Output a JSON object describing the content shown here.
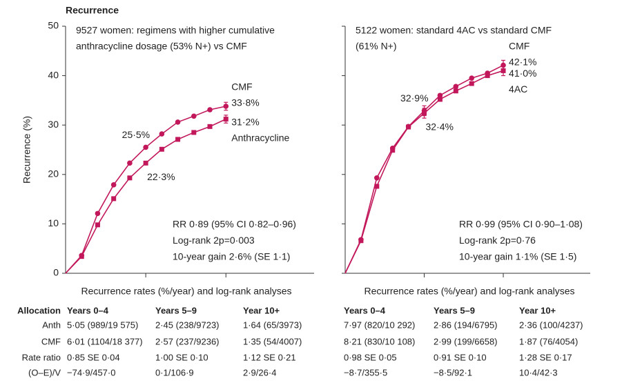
{
  "title": "Recurrence",
  "chart_data": [
    {
      "type": "line",
      "subtitle": [
        "9527 women: regimens with higher cumulative",
        "anthracycline dosage (53% N+) vs CMF"
      ],
      "ylabel": "Recurrence (%)",
      "xlabel": "Recurrence rates (%/year) and log-rank analyses",
      "stats": [
        "RR 0·89 (95% CI 0·82–0·96)",
        "Log-rank 2p=0·003",
        "10-year gain 2·6% (SE 1·1)"
      ],
      "x": [
        0,
        1,
        2,
        3,
        4,
        5,
        6,
        7,
        8,
        9,
        10
      ],
      "xlim": [
        0,
        15.5
      ],
      "xticks": [
        5,
        10
      ],
      "ylim": [
        0,
        50
      ],
      "yticks": [
        0,
        10,
        20,
        30,
        40,
        50
      ],
      "ytick_labels": true,
      "series": [
        {
          "name": "CMF",
          "color": "#c2185b",
          "marker": "circle",
          "values": [
            0,
            3.6,
            12.1,
            17.9,
            22.3,
            25.5,
            28.2,
            30.6,
            31.8,
            33.1,
            33.8
          ],
          "errors": [
            null,
            null,
            null,
            null,
            null,
            null,
            null,
            null,
            null,
            null,
            0.8
          ],
          "value_labels": [
            null,
            null,
            null,
            null,
            null,
            "25·5%",
            null,
            null,
            null,
            null,
            "33·8%"
          ]
        },
        {
          "name": "Anthracycline",
          "color": "#c2185b",
          "marker": "square",
          "values": [
            0,
            3.4,
            9.8,
            15.1,
            19.3,
            22.3,
            25.1,
            27.1,
            28.5,
            29.7,
            31.2
          ],
          "errors": [
            null,
            null,
            null,
            null,
            null,
            null,
            null,
            null,
            null,
            null,
            0.8
          ],
          "value_labels": [
            null,
            null,
            null,
            null,
            null,
            "22·3%",
            null,
            null,
            null,
            null,
            "31·2%"
          ]
        }
      ]
    },
    {
      "type": "line",
      "subtitle": [
        "5122 women: standard 4AC vs standard CMF",
        "(61% N+)"
      ],
      "xlabel": "Recurrence rates (%/year) and log-rank analyses",
      "stats": [
        "RR 0·99 (95% CI 0·90–1·08)",
        "Log-rank 2p=0·76",
        "10-year gain 1·1% (SE 1·5)"
      ],
      "x": [
        0,
        1,
        2,
        3,
        4,
        5,
        6,
        7,
        8,
        9,
        10
      ],
      "xlim": [
        0,
        15.5
      ],
      "xticks": [
        5,
        10
      ],
      "ylim": [
        0,
        50
      ],
      "yticks": [
        0,
        10,
        20,
        30,
        40,
        50
      ],
      "ytick_labels": false,
      "series": [
        {
          "name": "CMF",
          "color": "#c2185b",
          "marker": "circle",
          "values": [
            0,
            6.8,
            19.3,
            25.3,
            29.7,
            32.9,
            36.0,
            37.8,
            39.5,
            40.5,
            42.1
          ],
          "errors": [
            null,
            null,
            null,
            null,
            null,
            1.0,
            null,
            null,
            null,
            null,
            1.0
          ],
          "value_labels": [
            null,
            null,
            null,
            null,
            null,
            "32·9%",
            null,
            null,
            null,
            null,
            "42·1%"
          ]
        },
        {
          "name": "4AC",
          "color": "#c2185b",
          "marker": "square",
          "values": [
            0,
            6.6,
            17.6,
            24.9,
            29.6,
            32.4,
            35.2,
            36.9,
            38.4,
            40.0,
            41.0
          ],
          "errors": [
            null,
            null,
            null,
            null,
            null,
            1.0,
            null,
            null,
            null,
            null,
            1.0
          ],
          "value_labels": [
            null,
            null,
            null,
            null,
            null,
            "32·4%",
            null,
            null,
            null,
            null,
            "41·0%"
          ]
        }
      ]
    }
  ],
  "table": {
    "header": [
      "Allocation",
      "Years 0–4",
      "Years 5–9",
      "Year 10+",
      "Years 0–4",
      "Years 5–9",
      "Year 10+"
    ],
    "rows": [
      [
        "Anth",
        "5·05 (989/19 575)",
        "2·45 (238/9723)",
        "1·64 (65/3973)",
        "7·97 (820/10 292)",
        "2·86 (194/6795)",
        "2·36 (100/4237)"
      ],
      [
        "CMF",
        "6·01 (1104/18 377)",
        "2·57 (237/9236)",
        "1·35 (54/4007)",
        "8·21 (830/10 108)",
        "2·99 (199/6658)",
        "1·87 (76/4054)"
      ],
      [
        "Rate ratio",
        "0·85 SE 0·04",
        "1·00 SE 0·10",
        "1·12 SE 0·21",
        "0·98 SE 0·05",
        "0·91 SE 0·10",
        "1·28 SE 0·17"
      ],
      [
        "(O–E)/V",
        "−74·9/457·0",
        "0·1/106·9",
        "2·9/26·4",
        "−8·7/355·5",
        "−8·5/92·1",
        "10·4/42·3"
      ]
    ]
  }
}
